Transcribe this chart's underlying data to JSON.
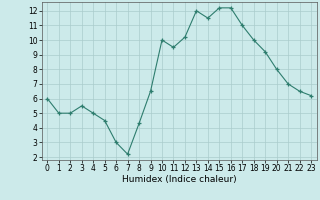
{
  "x": [
    0,
    1,
    2,
    3,
    4,
    5,
    6,
    7,
    8,
    9,
    10,
    11,
    12,
    13,
    14,
    15,
    16,
    17,
    18,
    19,
    20,
    21,
    22,
    23
  ],
  "y": [
    6.0,
    5.0,
    5.0,
    5.5,
    5.0,
    4.5,
    3.0,
    2.2,
    4.3,
    6.5,
    10.0,
    9.5,
    10.2,
    12.0,
    11.5,
    12.2,
    12.2,
    11.0,
    10.0,
    9.2,
    8.0,
    7.0,
    6.5,
    6.2
  ],
  "xlabel": "Humidex (Indice chaleur)",
  "xlim": [
    -0.5,
    23.5
  ],
  "ylim": [
    1.8,
    12.6
  ],
  "yticks": [
    2,
    3,
    4,
    5,
    6,
    7,
    8,
    9,
    10,
    11,
    12
  ],
  "xticks": [
    0,
    1,
    2,
    3,
    4,
    5,
    6,
    7,
    8,
    9,
    10,
    11,
    12,
    13,
    14,
    15,
    16,
    17,
    18,
    19,
    20,
    21,
    22,
    23
  ],
  "line_color": "#2e7d6e",
  "marker": "+",
  "bg_color": "#cceaea",
  "grid_color": "#aacccc",
  "label_fontsize": 6.5,
  "tick_fontsize": 5.5,
  "linewidth": 0.8,
  "markersize": 3.5,
  "markeredgewidth": 0.9
}
